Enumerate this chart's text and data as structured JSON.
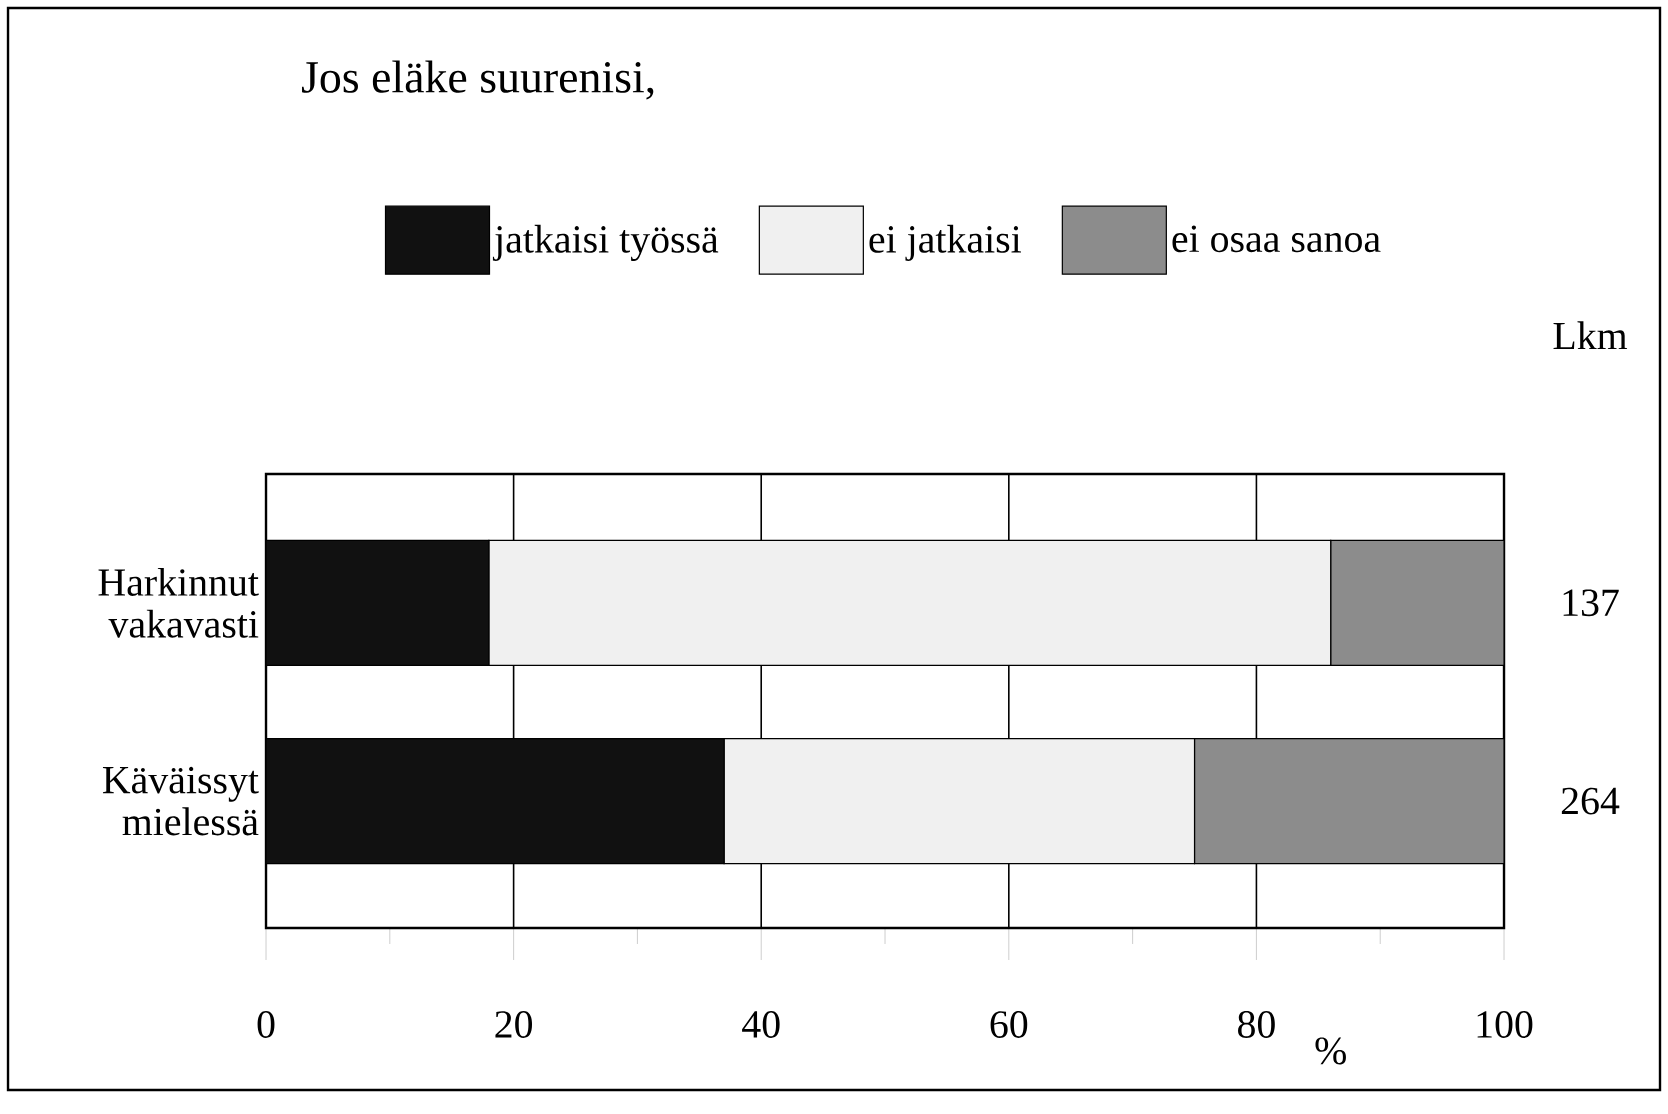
{
  "chart_data": {
    "type": "bar",
    "orientation": "horizontal",
    "stacked": true,
    "title": "Jos eläke suurenisi,",
    "xlabel": "%",
    "categories": [
      "Harkinnut vakavasti",
      "Käväissyt mielessä"
    ],
    "series": [
      {
        "name": "jatkaisi työssä",
        "color": "#111111",
        "values": [
          18,
          37
        ]
      },
      {
        "name": "ei jatkaisi",
        "color": "#f0f0f0",
        "values": [
          68,
          38
        ]
      },
      {
        "name": "ei osaa sanoa",
        "color": "#8c8c8c",
        "values": [
          14,
          25
        ]
      }
    ],
    "xlim": [
      0,
      100
    ],
    "xticks": [
      0,
      20,
      40,
      60,
      80,
      100
    ],
    "grid": "x",
    "legend": "top",
    "annotations": [
      "Lkm",
      "137",
      "264"
    ]
  }
}
